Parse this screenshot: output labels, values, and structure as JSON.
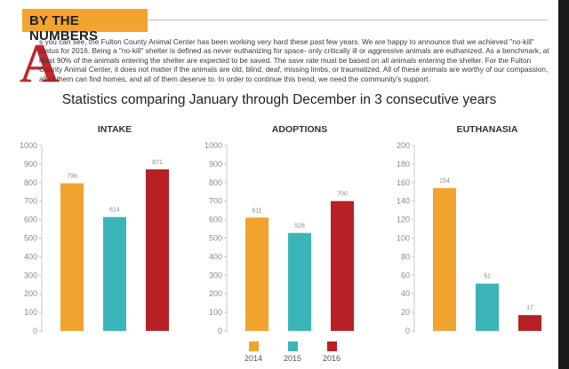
{
  "header": {
    "banner": "BY THE NUMBERS"
  },
  "intro": {
    "drop_cap": "A",
    "text": "s you can see, the Fulton County Animal Center has been working very hard these past few years. We are happy to announce that we achieved \"no-kill\" status for 2016. Being a \"no-kill\" shelter is defined as never euthanizing for space- only critically ill or aggressive animals are euthanized. As a benchmark, at least 90% of the animals entering the shelter are expected to be saved. The save rate must be based on all animals entering the shelter. For the Fulton County Animal Center, it does not matter if the animals are old, blind, deaf, missing limbs, or traumatized. All of these animals are worthy of our compassion, all of them can find homes, and all of them deserve to. In order to continue this trend, we need the community's support."
  },
  "chart_data": {
    "title": "Statistics comparing January through December in 3 consecutive years",
    "legend": {
      "placement": "bottom-center",
      "entries": [
        {
          "name": "2014",
          "color": "#f0a32f"
        },
        {
          "name": "2015",
          "color": "#3bb5b8"
        },
        {
          "name": "2016",
          "color": "#b72025"
        }
      ]
    },
    "charts": [
      {
        "type": "bar",
        "title": "INTAKE",
        "categories": [
          "2014",
          "2015",
          "2016"
        ],
        "values": [
          796,
          614,
          871
        ],
        "ylim": [
          0,
          1000
        ],
        "yticks": [
          0,
          100,
          200,
          300,
          400,
          500,
          600,
          700,
          800,
          900,
          1000
        ],
        "grid": false
      },
      {
        "type": "bar",
        "title": "ADOPTIONS",
        "categories": [
          "2014",
          "2015",
          "2016"
        ],
        "values": [
          611,
          528,
          700
        ],
        "ylim": [
          0,
          1000
        ],
        "yticks": [
          0,
          100,
          200,
          300,
          400,
          500,
          600,
          700,
          800,
          900,
          1000
        ],
        "grid": false
      },
      {
        "type": "bar",
        "title": "EUTHANASIA",
        "categories": [
          "2014",
          "2015",
          "2016"
        ],
        "values": [
          154,
          51,
          17
        ],
        "ylim": [
          0,
          200
        ],
        "yticks": [
          0,
          20,
          40,
          60,
          80,
          100,
          120,
          140,
          160,
          180,
          200
        ],
        "grid": false
      }
    ]
  }
}
